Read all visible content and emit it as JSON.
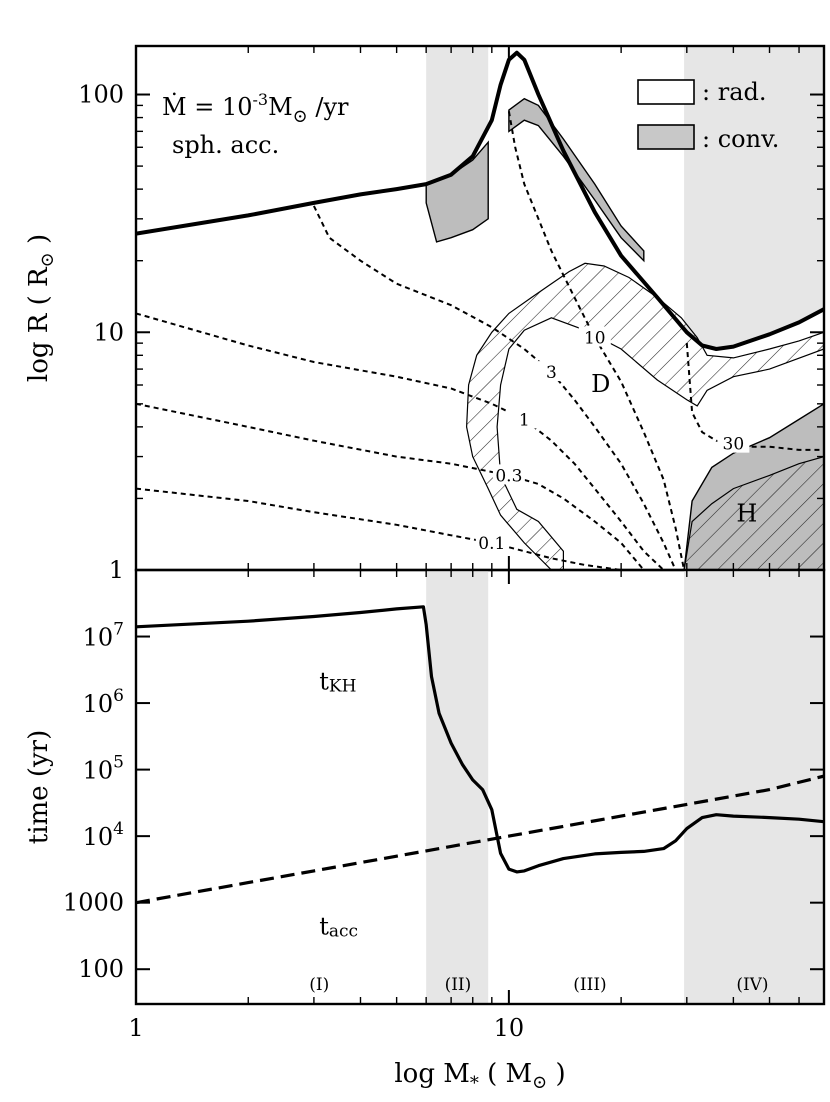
{
  "chart_data": [
    {
      "type": "line",
      "panel": "top",
      "xlabel_prefix": "log M",
      "xlabel_sub": "*",
      "xlabel_suffix": " ( M",
      "xlabel_end": " )",
      "ylabel_prefix": "log R ( R",
      "ylabel_end": " )",
      "xscale": "log",
      "yscale": "log",
      "xlim": [
        1,
        70
      ],
      "ylim": [
        1,
        160
      ],
      "yticks": [
        {
          "value": 1,
          "label": "1"
        },
        {
          "value": 10,
          "label": "10"
        },
        {
          "value": 100,
          "label": "100"
        }
      ],
      "annotation": {
        "mdot_prefix": "Ṁ = 10",
        "mdot_exp": "-3",
        "mdot_unit": "M",
        "mdot_per": " /yr",
        "line2": "sph. acc."
      },
      "legend": [
        {
          "label": ": rad.",
          "color": "#ffffff"
        },
        {
          "label": ": conv.",
          "color": "#c8c8c8"
        }
      ],
      "radius_curve": {
        "x": [
          1,
          2,
          3,
          4,
          5,
          6,
          7,
          8,
          9,
          9.5,
          10,
          10.5,
          11,
          12,
          14,
          17,
          20,
          25,
          30,
          33,
          36,
          40,
          50,
          60,
          70
        ],
        "y": [
          26,
          31,
          35,
          38,
          40,
          42,
          46,
          55,
          78,
          110,
          140,
          150,
          140,
          100,
          58,
          32,
          21,
          14,
          10,
          8.8,
          8.5,
          8.7,
          9.8,
          11,
          12.5
        ]
      },
      "convective_zones": [
        {
          "label": "",
          "upper": {
            "x": [
              6,
              7,
              8,
              8.8
            ],
            "y": [
              42,
              46,
              53,
              63
            ]
          },
          "lower": {
            "x": [
              6,
              6.4,
              7,
              8,
              8.8
            ],
            "y": [
              35,
              24,
              25,
              27,
              30
            ]
          }
        },
        {
          "label": "",
          "upper": {
            "x": [
              10,
              11,
              12,
              14,
              17,
              20,
              23
            ],
            "y": [
              86,
              96,
              90,
              65,
              42,
              28,
              22
            ]
          },
          "lower": {
            "x": [
              10,
              11,
              12,
              14,
              17,
              20,
              23
            ],
            "y": [
              70,
              78,
              74,
              55,
              36,
              25,
              20
            ]
          }
        },
        {
          "label": "H",
          "upper": {
            "x": [
              31,
              35,
              40,
              50,
              60,
              70
            ],
            "y": [
              1.95,
              2.7,
              3.1,
              3.6,
              4.3,
              5.0
            ]
          },
          "lower": {
            "x": [
              29.5,
              29.5,
              70
            ],
            "y": [
              1.0,
              1.0,
              1.0
            ]
          }
        }
      ],
      "contours": [
        {
          "label": "0.1",
          "x": [
            1,
            2,
            3,
            5,
            7,
            9,
            11,
            13,
            16,
            20
          ],
          "y": [
            2.2,
            1.95,
            1.75,
            1.55,
            1.4,
            1.3,
            1.2,
            1.12,
            1.05,
            1.0
          ]
        },
        {
          "label": "0.3",
          "x": [
            1,
            2,
            3,
            5,
            7,
            10,
            12,
            14,
            17,
            20,
            23
          ],
          "y": [
            5.0,
            4.0,
            3.5,
            3.0,
            2.8,
            2.5,
            2.3,
            2.0,
            1.6,
            1.3,
            1.0
          ]
        },
        {
          "label": "1",
          "x": [
            1,
            2,
            3,
            5,
            7,
            9,
            11,
            13,
            15,
            17,
            20,
            23,
            26
          ],
          "y": [
            12,
            8.8,
            7.5,
            6.5,
            5.8,
            5.0,
            4.3,
            3.5,
            2.8,
            2.2,
            1.6,
            1.2,
            1.0
          ]
        },
        {
          "label": "3",
          "x": [
            3,
            3.3,
            4,
            5,
            7,
            9,
            11,
            13,
            15,
            17,
            20,
            23,
            26,
            28
          ],
          "y": [
            34,
            25,
            20,
            16,
            13,
            10.5,
            8.5,
            6.8,
            5.2,
            4.0,
            2.8,
            1.9,
            1.3,
            1.0
          ]
        },
        {
          "label": "10",
          "x": [
            10,
            10.4,
            11,
            12,
            13,
            15,
            17,
            20,
            23,
            26,
            28,
            29.5
          ],
          "y": [
            85,
            60,
            42,
            30,
            22,
            14,
            9.5,
            6.2,
            3.8,
            2.4,
            1.5,
            1.0
          ]
        },
        {
          "label": "30",
          "x": [
            30,
            31,
            33,
            36,
            40,
            45,
            50,
            60,
            70
          ],
          "y": [
            9.0,
            4.6,
            3.8,
            3.5,
            3.4,
            3.3,
            3.3,
            3.2,
            3.2
          ]
        }
      ],
      "burning_regions": [
        {
          "label": "D",
          "x": [
            8.0,
            7.7,
            7.8,
            8.2,
            9.0,
            10.0,
            11.5,
            13.0,
            14.5,
            16.0,
            18.0,
            21.0,
            25.0,
            29.0,
            32.0,
            34.0,
            40.0,
            50.0,
            60.0,
            70.0,
            70.0,
            50.0,
            40.0,
            34.0,
            32.0,
            30.0,
            25.0,
            20.0,
            16.0,
            13.0,
            11.0,
            10.0,
            9.5,
            9.3,
            9.5,
            10.5,
            12.0,
            14.0,
            14.0,
            13.0,
            11.0,
            9.5,
            8.8
          ],
          "y": [
            3.0,
            4.0,
            6.0,
            8.0,
            10.0,
            12.0,
            14.0,
            16.0,
            18.0,
            19.5,
            19.0,
            17.0,
            14.0,
            11.5,
            9.5,
            8.0,
            7.8,
            8.5,
            9.2,
            10.0,
            8.5,
            7.0,
            6.5,
            5.7,
            4.9,
            5.2,
            6.3,
            8.5,
            10.2,
            11.5,
            10.2,
            8.5,
            6.0,
            4.0,
            2.5,
            1.8,
            1.6,
            1.2,
            1.0,
            1.0,
            1.3,
            1.7,
            2.2
          ]
        },
        {
          "label": "H",
          "x": [
            29.5,
            31,
            35,
            40,
            50,
            60,
            70,
            70,
            29.5
          ],
          "y": [
            1.0,
            1.6,
            1.9,
            2.2,
            2.5,
            2.8,
            3.0,
            1.0,
            1.0
          ]
        }
      ],
      "shaded_x_ranges": [
        [
          6,
          8.8
        ],
        [
          29.5,
          70
        ]
      ]
    },
    {
      "type": "line",
      "panel": "bottom",
      "xscale": "log",
      "yscale": "log",
      "xlim": [
        1,
        70
      ],
      "ylim": [
        30,
        100000000
      ],
      "xticks": [
        {
          "value": 1,
          "label": "1"
        },
        {
          "value": 10,
          "label": "10"
        }
      ],
      "ylabel": "time (yr)",
      "yticks": [
        {
          "value": 100,
          "label": "100"
        },
        {
          "value": 1000,
          "label": "1000"
        },
        {
          "value": 10000,
          "base": "10",
          "exp": "4"
        },
        {
          "value": 100000,
          "base": "10",
          "exp": "5"
        },
        {
          "value": 1000000,
          "base": "10",
          "exp": "6"
        },
        {
          "value": 10000000,
          "base": "10",
          "exp": "7"
        }
      ],
      "series": [
        {
          "name": "t",
          "sub": "KH",
          "style": "solid",
          "x": [
            1,
            2,
            3,
            4,
            5,
            5.9,
            6,
            6.2,
            6.5,
            7,
            7.5,
            8,
            8.5,
            9,
            9.5,
            10,
            10.5,
            11,
            12,
            14,
            17,
            20,
            23,
            26,
            28,
            30,
            33,
            36,
            40,
            50,
            60,
            70
          ],
          "y": [
            14000000,
            17000000,
            20000000,
            23000000,
            26000000,
            28000000,
            15000000,
            2500000,
            700000,
            250000,
            120000,
            70000,
            50000,
            25000,
            5500,
            3200,
            2900,
            3000,
            3600,
            4600,
            5400,
            5700,
            5900,
            6500,
            8500,
            13000,
            19000,
            21000,
            20000,
            19000,
            18000,
            16500
          ]
        },
        {
          "name": "t",
          "sub": "acc",
          "style": "dashed",
          "x": [
            1,
            2,
            3,
            5,
            7,
            10,
            20,
            30,
            50,
            70
          ],
          "y": [
            1000,
            2000,
            3000,
            5000,
            7000,
            10000,
            20000,
            30000,
            50000,
            80000
          ]
        }
      ],
      "phase_labels": [
        {
          "label": "(I)",
          "x": 3.1
        },
        {
          "label": "(II)",
          "x": 7.3
        },
        {
          "label": "(III)",
          "x": 16.5
        },
        {
          "label": "(IV)",
          "x": 45
        }
      ],
      "shaded_x_ranges": [
        [
          6,
          8.8
        ],
        [
          29.5,
          70
        ]
      ]
    }
  ]
}
